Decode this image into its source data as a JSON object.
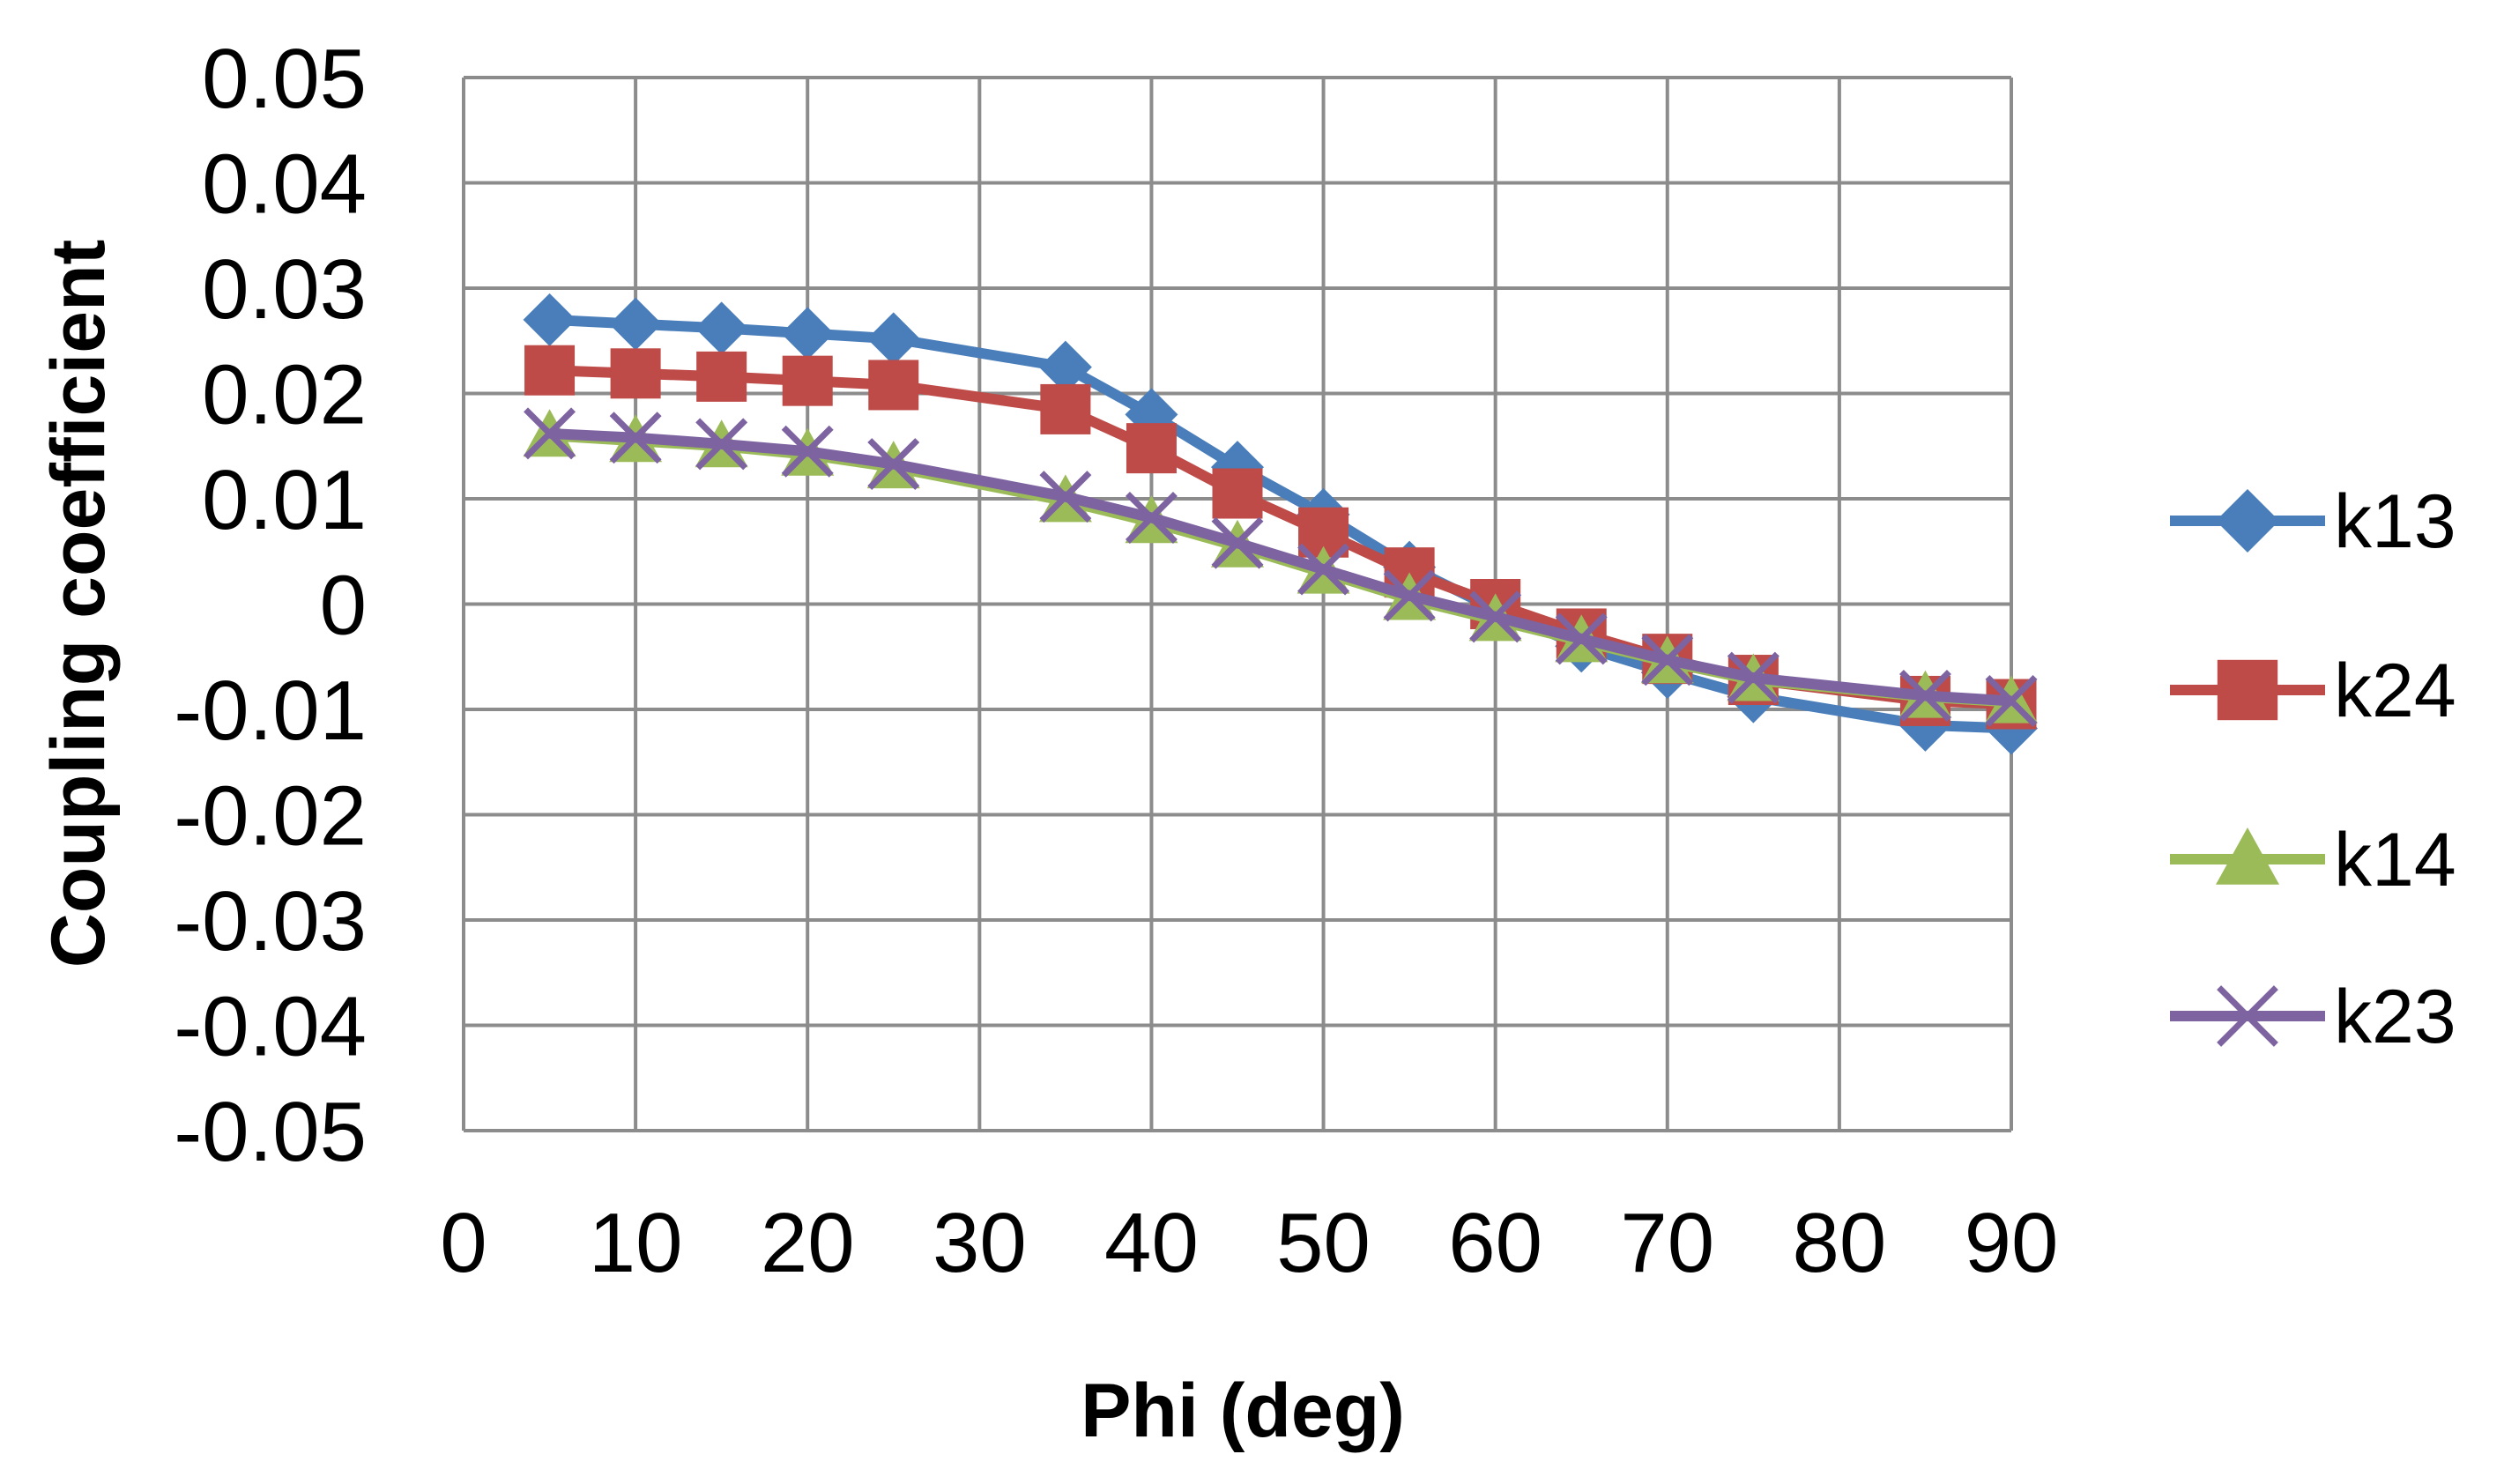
{
  "chart_data": {
    "type": "line",
    "title": "",
    "xlabel": "Phi (deg)",
    "ylabel": "Coupling coefficient",
    "xlim": [
      0,
      90
    ],
    "ylim": [
      -0.05,
      0.05
    ],
    "x_ticks": [
      0,
      10,
      20,
      30,
      40,
      50,
      60,
      70,
      80,
      90
    ],
    "x_tick_labels": [
      "0",
      "10",
      "20",
      "30",
      "40",
      "50",
      "60",
      "70",
      "80",
      "90"
    ],
    "y_ticks": [
      0.05,
      0.04,
      0.03,
      0.02,
      0.01,
      0,
      -0.01,
      -0.02,
      -0.03,
      -0.04,
      -0.05
    ],
    "y_tick_labels": [
      "0.05",
      "0.04",
      "0.03",
      "0.02",
      "0.01",
      "0",
      "-0.01",
      "-0.02",
      "-0.03",
      "-0.04",
      "-0.05"
    ],
    "grid": true,
    "legend_position": "right",
    "x": [
      5,
      10,
      15,
      20,
      25,
      35,
      40,
      45,
      50,
      55,
      60,
      65,
      70,
      75,
      85,
      90
    ],
    "series": [
      {
        "name": "k13",
        "color": "#4a7ebb",
        "marker": "diamond",
        "values": [
          0.027,
          0.0266,
          0.0262,
          0.0257,
          0.0252,
          0.0225,
          0.018,
          0.013,
          0.0085,
          0.0035,
          -0.0005,
          -0.004,
          -0.0065,
          -0.0088,
          -0.0115,
          -0.0118
        ]
      },
      {
        "name": "k24",
        "color": "#be4b48",
        "marker": "square",
        "values": [
          0.0222,
          0.0219,
          0.0216,
          0.0212,
          0.0208,
          0.0185,
          0.0148,
          0.0105,
          0.0068,
          0.003,
          0.0,
          -0.0028,
          -0.0052,
          -0.0072,
          -0.0092,
          -0.0095
        ]
      },
      {
        "name": "k14",
        "color": "#9bbb59",
        "marker": "triangle",
        "values": [
          0.016,
          0.0155,
          0.015,
          0.0142,
          0.013,
          0.0098,
          0.0078,
          0.0055,
          0.003,
          0.0005,
          -0.0015,
          -0.0035,
          -0.0055,
          -0.0072,
          -0.0088,
          -0.0093
        ]
      },
      {
        "name": "k23",
        "color": "#7e63a1",
        "marker": "x",
        "values": [
          0.0162,
          0.0158,
          0.0152,
          0.0145,
          0.0133,
          0.0102,
          0.0082,
          0.0058,
          0.0033,
          0.0008,
          -0.0012,
          -0.0033,
          -0.0053,
          -0.007,
          -0.0087,
          -0.0092
        ]
      }
    ]
  }
}
